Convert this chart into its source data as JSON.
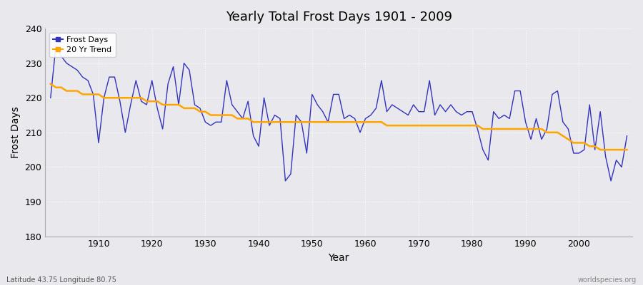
{
  "title": "Yearly Total Frost Days 1901 - 2009",
  "xlabel": "Year",
  "ylabel": "Frost Days",
  "footnote_left": "Latitude 43.75 Longitude 80.75",
  "footnote_right": "worldspecies.org",
  "legend_frost": "Frost Days",
  "legend_trend": "20 Yr Trend",
  "ylim": [
    180,
    240
  ],
  "yticks": [
    180,
    190,
    200,
    210,
    220,
    230,
    240
  ],
  "xlim": [
    1900,
    2010
  ],
  "xticks": [
    1910,
    1920,
    1930,
    1940,
    1950,
    1960,
    1970,
    1980,
    1990,
    2000
  ],
  "line_color": "#3333bb",
  "trend_color": "#FFA500",
  "bg_color": "#e8e8ed",
  "fig_bg_color": "#e8e8ed",
  "years": [
    1901,
    1902,
    1903,
    1904,
    1905,
    1906,
    1907,
    1908,
    1909,
    1910,
    1911,
    1912,
    1913,
    1914,
    1915,
    1916,
    1917,
    1918,
    1919,
    1920,
    1921,
    1922,
    1923,
    1924,
    1925,
    1926,
    1927,
    1928,
    1929,
    1930,
    1931,
    1932,
    1933,
    1934,
    1935,
    1936,
    1937,
    1938,
    1939,
    1940,
    1941,
    1942,
    1943,
    1944,
    1945,
    1946,
    1947,
    1948,
    1949,
    1950,
    1951,
    1952,
    1953,
    1954,
    1955,
    1956,
    1957,
    1958,
    1959,
    1960,
    1961,
    1962,
    1963,
    1964,
    1965,
    1966,
    1967,
    1968,
    1969,
    1970,
    1971,
    1972,
    1973,
    1974,
    1975,
    1976,
    1977,
    1978,
    1979,
    1980,
    1981,
    1982,
    1983,
    1984,
    1985,
    1986,
    1987,
    1988,
    1989,
    1990,
    1991,
    1992,
    1993,
    1994,
    1995,
    1996,
    1997,
    1998,
    1999,
    2000,
    2001,
    2002,
    2003,
    2004,
    2005,
    2006,
    2007,
    2008,
    2009
  ],
  "frost_days": [
    220,
    235,
    232,
    230,
    229,
    228,
    226,
    225,
    221,
    207,
    220,
    226,
    226,
    219,
    210,
    218,
    225,
    219,
    218,
    225,
    217,
    211,
    224,
    229,
    218,
    230,
    228,
    218,
    217,
    213,
    212,
    213,
    213,
    225,
    218,
    216,
    214,
    219,
    209,
    206,
    220,
    212,
    215,
    214,
    196,
    198,
    215,
    213,
    204,
    221,
    218,
    216,
    213,
    221,
    221,
    214,
    215,
    214,
    210,
    214,
    215,
    217,
    225,
    216,
    218,
    217,
    216,
    215,
    218,
    216,
    216,
    225,
    215,
    218,
    216,
    218,
    216,
    215,
    216,
    216,
    211,
    205,
    202,
    216,
    214,
    215,
    214,
    222,
    222,
    213,
    208,
    214,
    208,
    211,
    221,
    222,
    213,
    211,
    204,
    204,
    205,
    218,
    205,
    216,
    203,
    196,
    202,
    200,
    209
  ],
  "trend": [
    224,
    223,
    223,
    222,
    222,
    222,
    221,
    221,
    221,
    221,
    220,
    220,
    220,
    220,
    220,
    220,
    220,
    220,
    219,
    219,
    219,
    218,
    218,
    218,
    218,
    217,
    217,
    217,
    216,
    216,
    215,
    215,
    215,
    215,
    215,
    214,
    214,
    214,
    213,
    213,
    213,
    213,
    213,
    213,
    213,
    213,
    213,
    213,
    213,
    213,
    213,
    213,
    213,
    213,
    213,
    213,
    213,
    213,
    213,
    213,
    213,
    213,
    213,
    212,
    212,
    212,
    212,
    212,
    212,
    212,
    212,
    212,
    212,
    212,
    212,
    212,
    212,
    212,
    212,
    212,
    212,
    211,
    211,
    211,
    211,
    211,
    211,
    211,
    211,
    211,
    211,
    211,
    211,
    210,
    210,
    210,
    209,
    208,
    207,
    207,
    207,
    206,
    206,
    205,
    205,
    205,
    205,
    205,
    205
  ]
}
